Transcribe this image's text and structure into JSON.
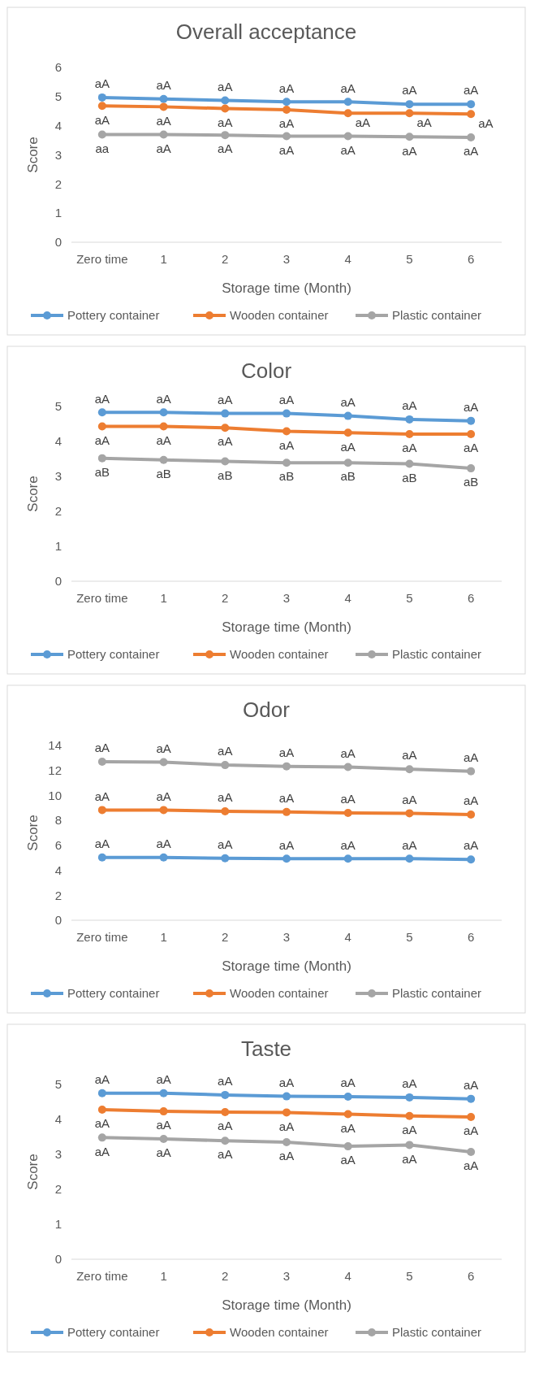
{
  "chart_data": [
    {
      "type": "line",
      "title": "Overall acceptance",
      "xlabel": "Storage time (Month)",
      "ylabel": "Score",
      "categories": [
        "Zero time",
        "1",
        "2",
        "3",
        "4",
        "5",
        "6"
      ],
      "ylim": [
        0,
        6
      ],
      "yticks": [
        0,
        1,
        2,
        3,
        4,
        5,
        6
      ],
      "legend": "bottom",
      "marker": "circle",
      "series": [
        {
          "name": "Pottery container",
          "color": "#5b9bd5",
          "values": [
            4.97,
            4.92,
            4.87,
            4.82,
            4.82,
            4.74,
            4.74
          ],
          "value_labels": [
            "aA",
            "aA",
            "aA",
            "aA",
            "aA",
            "aA",
            "aA"
          ]
        },
        {
          "name": "Wooden container",
          "color": "#ed7d31",
          "values": [
            4.68,
            4.65,
            4.59,
            4.55,
            4.43,
            4.43,
            4.4
          ],
          "value_labels": [
            "aA",
            "aA",
            "aA",
            "aA",
            "aA",
            "aA",
            "aA"
          ]
        },
        {
          "name": "Plastic container",
          "color": "#a5a5a5",
          "values": [
            3.7,
            3.7,
            3.68,
            3.64,
            3.64,
            3.62,
            3.6
          ],
          "value_labels": [
            "aa",
            "aA",
            "aA",
            "aA",
            "aA",
            "aA",
            "aA"
          ]
        }
      ]
    },
    {
      "type": "line",
      "title": "Color",
      "xlabel": "Storage time (Month)",
      "ylabel": "Score",
      "categories": [
        "Zero time",
        "1",
        "2",
        "3",
        "4",
        "5",
        "6"
      ],
      "ylim": [
        0,
        5
      ],
      "yticks": [
        0,
        1,
        2,
        3,
        4,
        5
      ],
      "legend": "bottom",
      "marker": "circle",
      "series": [
        {
          "name": "Pottery container",
          "color": "#5b9bd5",
          "values": [
            4.83,
            4.83,
            4.8,
            4.8,
            4.73,
            4.63,
            4.59
          ],
          "value_labels": [
            "aA",
            "aA",
            "aA",
            "aA",
            "aA",
            "aA",
            "aA"
          ]
        },
        {
          "name": "Wooden container",
          "color": "#ed7d31",
          "values": [
            4.43,
            4.43,
            4.39,
            4.29,
            4.25,
            4.21,
            4.21
          ],
          "value_labels": [
            "aA",
            "aA",
            "aA",
            "aA",
            "aA",
            "aA",
            "aA"
          ]
        },
        {
          "name": "Plastic container",
          "color": "#a5a5a5",
          "values": [
            3.52,
            3.47,
            3.43,
            3.39,
            3.39,
            3.36,
            3.23
          ],
          "value_labels": [
            "aB",
            "aB",
            "aB",
            "aB",
            "aB",
            "aB",
            "aB"
          ]
        }
      ]
    },
    {
      "type": "line",
      "title": "Odor",
      "xlabel": "Storage time (Month)",
      "ylabel": "Score",
      "categories": [
        "Zero time",
        "1",
        "2",
        "3",
        "4",
        "5",
        "6"
      ],
      "ylim": [
        0,
        14
      ],
      "yticks": [
        0,
        2,
        4,
        6,
        8,
        10,
        12,
        14
      ],
      "legend": "bottom",
      "marker": "circle",
      "series": [
        {
          "name": "Pottery container",
          "color": "#5b9bd5",
          "values": [
            5.03,
            5.03,
            4.97,
            4.93,
            4.93,
            4.93,
            4.87
          ],
          "value_labels": [
            "aA",
            "aA",
            "aA",
            "aA",
            "aA",
            "aA",
            "aA"
          ]
        },
        {
          "name": "Wooden container",
          "color": "#ed7d31",
          "values": [
            8.83,
            8.83,
            8.73,
            8.67,
            8.6,
            8.57,
            8.47
          ],
          "value_labels": [
            "aA",
            "aA",
            "aA",
            "aA",
            "aA",
            "aA",
            "aA"
          ]
        },
        {
          "name": "Plastic container",
          "color": "#a5a5a5",
          "values": [
            12.7,
            12.67,
            12.43,
            12.33,
            12.27,
            12.1,
            11.93
          ],
          "value_labels": [
            "aA",
            "aA",
            "aA",
            "aA",
            "aA",
            "aA",
            "aA"
          ]
        }
      ]
    },
    {
      "type": "line",
      "title": "Taste",
      "xlabel": "Storage time (Month)",
      "ylabel": "Score",
      "categories": [
        "Zero time",
        "1",
        "2",
        "3",
        "4",
        "5",
        "6"
      ],
      "ylim": [
        0,
        5
      ],
      "yticks": [
        0,
        1,
        2,
        3,
        4,
        5
      ],
      "legend": "bottom",
      "marker": "circle",
      "series": [
        {
          "name": "Pottery container",
          "color": "#5b9bd5",
          "values": [
            4.75,
            4.75,
            4.7,
            4.66,
            4.65,
            4.63,
            4.59
          ],
          "value_labels": [
            "aA",
            "aA",
            "aA",
            "aA",
            "aA",
            "aA",
            "aA"
          ]
        },
        {
          "name": "Wooden container",
          "color": "#ed7d31",
          "values": [
            4.28,
            4.23,
            4.21,
            4.2,
            4.15,
            4.1,
            4.07
          ],
          "value_labels": [
            "aA",
            "aA",
            "aA",
            "aA",
            "aA",
            "aA",
            "aA"
          ]
        },
        {
          "name": "Plastic container",
          "color": "#a5a5a5",
          "values": [
            3.48,
            3.44,
            3.39,
            3.35,
            3.23,
            3.27,
            3.07
          ],
          "value_labels": [
            "aA",
            "aA",
            "aA",
            "aA",
            "aA",
            "aA",
            "aA"
          ]
        }
      ]
    }
  ]
}
